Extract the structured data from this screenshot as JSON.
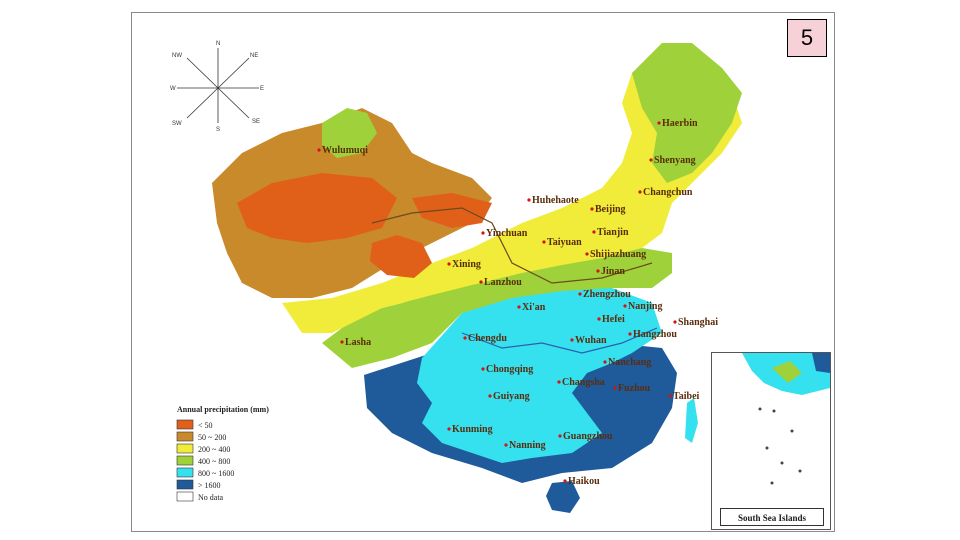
{
  "slide_number": "5",
  "compass": {
    "n": "N",
    "ne": "NE",
    "e": "E",
    "se": "SE",
    "s": "S",
    "sw": "SW",
    "w": "W",
    "nw": "NW"
  },
  "legend": {
    "title": "Annual precipitation (mm)",
    "items": [
      {
        "label": "< 50",
        "color": "#e0601a"
      },
      {
        "label": "50 ~ 200",
        "color": "#c98a2c"
      },
      {
        "label": "200 ~ 400",
        "color": "#f1ec3a"
      },
      {
        "label": "400 ~ 800",
        "color": "#9fd23a"
      },
      {
        "label": "800 ~ 1600",
        "color": "#35e0ef"
      },
      {
        "label": "> 1600",
        "color": "#1f5a9a"
      },
      {
        "label": "No data",
        "color": "#ffffff"
      }
    ]
  },
  "cities": {
    "haerbin": "Haerbin",
    "shenyang": "Shenyang",
    "changchun": "Changchun",
    "wulumuqi": "Wulumuqi",
    "huhehaote": "Huhehaote",
    "beijing": "Beijing",
    "tianjin": "Tianjin",
    "yinchuan": "Yinchuan",
    "taiyuan": "Taiyuan",
    "shijiazhuang": "Shijiazhuang",
    "xining": "Xining",
    "lanzhou": "Lanzhou",
    "jinan": "Jinan",
    "zhengzhou": "Zhengzhou",
    "xian": "Xi'an",
    "nanjing": "Nanjing",
    "hefei": "Hefei",
    "shanghai": "Shanghai",
    "hangzhou": "Hangzhou",
    "wuhan": "Wuhan",
    "chengdu": "Chengdu",
    "lasha": "Lasha",
    "nanchang": "Nanchang",
    "chongqing": "Chongqing",
    "changsha": "Changsha",
    "fuzhou": "Fuzhou",
    "taibei": "Taibei",
    "guiyang": "Guiyang",
    "kunming": "Kunming",
    "nanning": "Nanning",
    "guangzhou": "Guangzhou",
    "haikou": "Haikou"
  },
  "inset": {
    "label": "South Sea Islands"
  }
}
